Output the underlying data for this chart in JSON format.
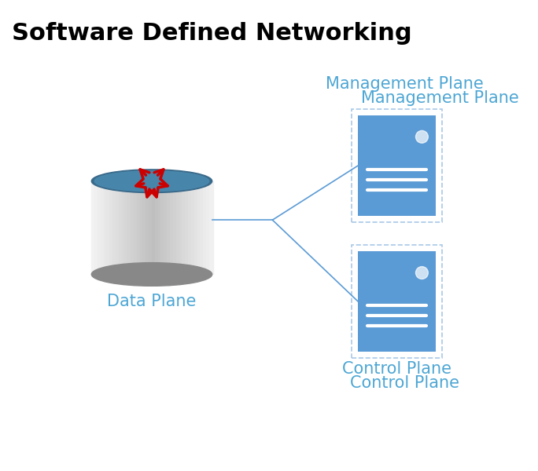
{
  "title": "Software Defined Networking",
  "title_fontsize": 22,
  "title_color": "#000000",
  "bg_color": "#ffffff",
  "label_color": "#4da6d4",
  "label_fontsize": 15,
  "plane_labels": [
    "Management Plane",
    "Control Plane",
    "Data Plane"
  ],
  "server_box_color": "#5b9bd5",
  "server_box_dashed_color": "#a8c8e8",
  "line_color": "#5b9bd5",
  "arrow_color": "#cc0000",
  "cylinder_body_color_top": "#4a7fa8",
  "cylinder_body_color_bottom": "#c0c0c0",
  "cylinder_ellipse_color": "#5b9bd5"
}
